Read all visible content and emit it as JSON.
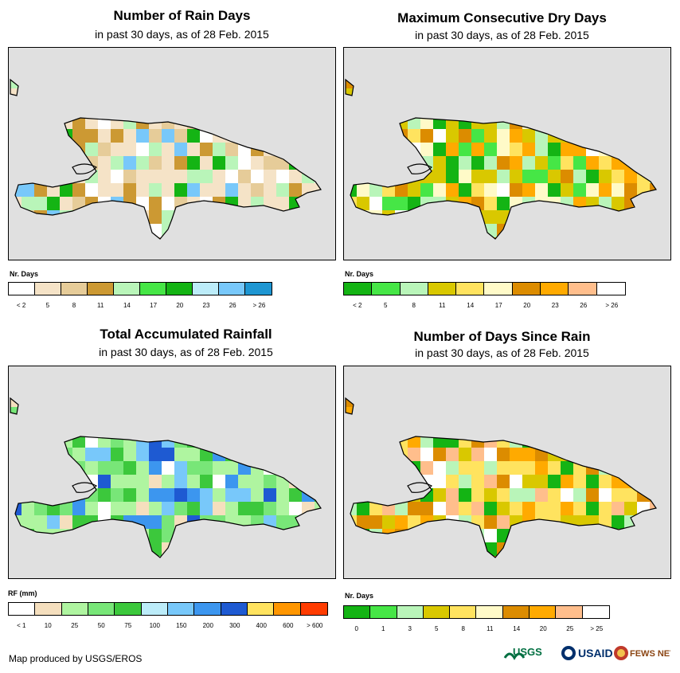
{
  "colors": {
    "coast": "#000000",
    "map_bg": "#e0e0e0",
    "ocean_white": "#ffffff"
  },
  "panels": [
    {
      "title": "Number of Rain Days",
      "subtitle": "in past 30 days, as of 28 Feb. 2015",
      "legend_title": "Nr. Days",
      "legend_colors": [
        "#ffffff",
        "#f5e3c7",
        "#e6cc99",
        "#cc9933",
        "#b9f5b9",
        "#46e646",
        "#14b414",
        "#bcecf9",
        "#78c8fa",
        "#1e96d2"
      ],
      "legend_labels": [
        "< 2",
        "5",
        "8",
        "11",
        "14",
        "17",
        "20",
        "23",
        "26",
        "> 26"
      ],
      "fill": [
        "#f5e3c7",
        "#e6cc99",
        "#ffffff",
        "#cc9933",
        "#b9f5b9",
        "#78c8fa",
        "#14b414"
      ]
    },
    {
      "title": "Maximum Consecutive Dry Days",
      "subtitle": "in past 30 days, as of 28 Feb. 2015",
      "legend_title": "Nr. Days",
      "legend_colors": [
        "#14b414",
        "#46e646",
        "#b9f5b9",
        "#d9c800",
        "#ffe35f",
        "#fffac8",
        "#dc8c00",
        "#ffaa00",
        "#ffbe8c",
        "#ffffff"
      ],
      "legend_labels": [
        "< 2",
        "5",
        "8",
        "11",
        "14",
        "17",
        "20",
        "23",
        "26",
        "> 26"
      ],
      "fill": [
        "#d9c800",
        "#ffe35f",
        "#fffac8",
        "#b9f5b9",
        "#dc8c00",
        "#ffaa00",
        "#46e646",
        "#14b414",
        "#ffffff"
      ]
    },
    {
      "title": "Total Accumulated Rainfall",
      "subtitle": "in past 30 days, as of 28 Feb. 2015",
      "legend_title": "RF (mm)",
      "legend_colors": [
        "#ffffff",
        "#f5dfbe",
        "#aff5a0",
        "#78e678",
        "#3cc83c",
        "#bcecf9",
        "#78c8fa",
        "#3c96ef",
        "#1e5ad2",
        "#ffe35f",
        "#ff9600",
        "#ff3c00"
      ],
      "legend_labels": [
        "< 1",
        "10",
        "25",
        "50",
        "75",
        "100",
        "150",
        "200",
        "300",
        "400",
        "600",
        "> 600"
      ],
      "fill": [
        "#aff5a0",
        "#78e678",
        "#3cc83c",
        "#f5dfbe",
        "#ffffff",
        "#78c8fa",
        "#3c96ef",
        "#1e5ad2"
      ]
    },
    {
      "title": "Number of Days Since Rain",
      "subtitle": "in past 30 days, as of 28 Feb. 2015",
      "legend_title": "Nr. Days",
      "legend_colors": [
        "#14b414",
        "#46e646",
        "#b9f5b9",
        "#d9c800",
        "#ffe35f",
        "#fffac8",
        "#dc8c00",
        "#ffaa00",
        "#ffbe8c",
        "#ffffff"
      ],
      "legend_labels": [
        "0",
        "1",
        "3",
        "5",
        "8",
        "11",
        "14",
        "20",
        "25",
        "> 25"
      ],
      "fill": [
        "#ffe35f",
        "#ffaa00",
        "#dc8c00",
        "#14b414",
        "#d9c800",
        "#ffbe8c",
        "#ffffff",
        "#b9f5b9"
      ]
    }
  ],
  "credit": "Map produced by USGS/EROS",
  "logos": [
    "USGS",
    "USAID",
    "FEWS NET"
  ]
}
